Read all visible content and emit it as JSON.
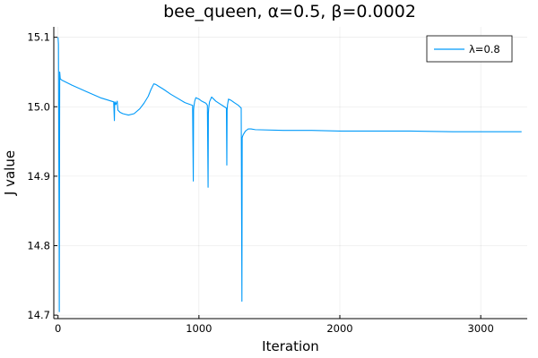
{
  "chart_data": {
    "type": "line",
    "title": "bee_queen, α=0.5, β=0.0002",
    "xlabel": "Iteration",
    "ylabel": "J value",
    "xlim": [
      -30,
      3330
    ],
    "ylim": [
      14.695,
      15.115
    ],
    "xticks": [
      0,
      1000,
      2000,
      3000
    ],
    "xtick_labels": [
      "0",
      "1000",
      "2000",
      "3000"
    ],
    "yticks": [
      14.7,
      14.8,
      14.9,
      15.0,
      15.1
    ],
    "ytick_labels": [
      "14.7",
      "14.8",
      "14.9",
      "15.0",
      "15.1"
    ],
    "grid": true,
    "legend_position": "top-right",
    "series": [
      {
        "name": "λ=0.8",
        "color": "#009af9",
        "x": [
          0,
          3,
          6,
          8,
          9,
          12,
          16,
          30,
          100,
          200,
          300,
          395,
          400,
          402,
          404,
          410,
          420,
          425,
          430,
          435,
          440,
          460,
          500,
          540,
          580,
          610,
          640,
          660,
          680,
          695,
          710,
          750,
          800,
          850,
          900,
          955,
          960,
          962,
          964,
          970,
          978,
          990,
          1000,
          1020,
          1050,
          1060,
          1065,
          1067,
          1069,
          1075,
          1090,
          1100,
          1120,
          1150,
          1180,
          1195,
          1198,
          1200,
          1203,
          1210,
          1230,
          1250,
          1280,
          1300,
          1305,
          1307,
          1309,
          1315,
          1330,
          1350,
          1370,
          1400,
          1600,
          1800,
          2000,
          2200,
          2500,
          2800,
          3000,
          3200,
          3290
        ],
        "y": [
          15.1,
          15.09,
          14.92,
          14.81,
          14.705,
          15.05,
          15.04,
          15.038,
          15.031,
          15.022,
          15.013,
          15.007,
          14.98,
          15.005,
          15.007,
          15.003,
          15.008,
          14.995,
          14.994,
          14.993,
          14.992,
          14.99,
          14.988,
          14.99,
          14.997,
          15.005,
          15.015,
          15.025,
          15.033,
          15.032,
          15.03,
          15.025,
          15.018,
          15.012,
          15.006,
          15.002,
          14.893,
          14.995,
          15.0,
          15.008,
          15.013,
          15.012,
          15.011,
          15.008,
          15.005,
          15.002,
          14.884,
          14.99,
          14.997,
          15.007,
          15.014,
          15.012,
          15.008,
          15.004,
          15.0,
          14.998,
          14.916,
          14.995,
          15.003,
          15.011,
          15.009,
          15.006,
          15.002,
          14.998,
          14.72,
          14.955,
          14.957,
          14.96,
          14.965,
          14.968,
          14.968,
          14.967,
          14.966,
          14.966,
          14.965,
          14.965,
          14.965,
          14.964,
          14.964,
          14.964,
          14.964
        ]
      }
    ]
  }
}
